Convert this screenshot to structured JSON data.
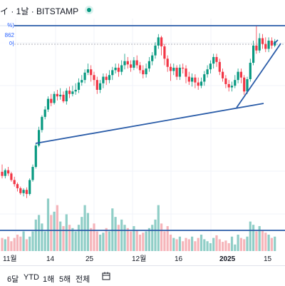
{
  "header": {
    "title": "イ · 1날 · BITSTAMP",
    "series_labels": [
      "%)",
      "862",
      "어"
    ]
  },
  "range_buttons": [
    "6달",
    "YTD",
    "1해",
    "5해",
    "전체"
  ],
  "colors": {
    "up": "#089981",
    "down": "#f23645",
    "up_vol": "#7cc6bd",
    "down_vol": "#f4a8ae",
    "line": "#2a5ca8"
  },
  "chart_data": {
    "type": "candlestick",
    "xtick_labels": [
      "11월",
      "14",
      "25",
      "12월",
      "16",
      "2025",
      "15"
    ],
    "candles": [
      [
        0.1,
        0.05,
        0.19,
        0.02
      ],
      [
        0.05,
        0.12,
        0.14,
        0.02
      ],
      [
        0.12,
        0.08,
        0.16,
        0.05
      ],
      [
        0.08,
        0.0,
        0.1,
        -0.02
      ],
      [
        0.0,
        -0.05,
        0.04,
        -0.08
      ],
      [
        -0.05,
        -0.1,
        -0.03,
        -0.14
      ],
      [
        -0.1,
        -0.16,
        -0.08,
        -0.18
      ],
      [
        -0.16,
        -0.12,
        -0.1,
        -0.2
      ],
      [
        -0.12,
        -0.17,
        -0.09,
        -0.22
      ],
      [
        -0.17,
        0.0,
        0.02,
        -0.19
      ],
      [
        0.0,
        0.16,
        0.19,
        -0.02
      ],
      [
        0.16,
        0.42,
        0.45,
        0.14
      ],
      [
        0.42,
        0.61,
        0.65,
        0.4
      ],
      [
        0.61,
        0.77,
        0.79,
        0.58
      ],
      [
        0.77,
        0.86,
        0.9,
        0.74
      ],
      [
        0.86,
        0.99,
        1.02,
        0.83
      ],
      [
        0.99,
        0.94,
        1.05,
        0.9
      ],
      [
        0.94,
        1.05,
        1.08,
        0.92
      ],
      [
        1.05,
        1.02,
        1.1,
        0.97
      ],
      [
        1.02,
        1.04,
        1.12,
        0.98
      ],
      [
        1.04,
        0.96,
        1.08,
        0.94
      ],
      [
        0.96,
        1.09,
        1.12,
        0.92
      ],
      [
        1.09,
        1.05,
        1.14,
        1.0
      ],
      [
        1.05,
        1.08,
        1.15,
        1.02
      ],
      [
        1.08,
        1.1,
        1.18,
        1.04
      ],
      [
        1.1,
        1.19,
        1.24,
        1.06
      ],
      [
        1.19,
        1.22,
        1.28,
        1.15
      ],
      [
        1.22,
        1.31,
        1.35,
        1.18
      ],
      [
        1.31,
        1.35,
        1.42,
        1.28
      ],
      [
        1.35,
        1.28,
        1.4,
        1.2
      ],
      [
        1.28,
        1.22,
        1.32,
        1.15
      ],
      [
        1.22,
        1.1,
        1.26,
        1.05
      ],
      [
        1.1,
        1.18,
        1.22,
        1.06
      ],
      [
        1.18,
        1.26,
        1.3,
        1.12
      ],
      [
        1.26,
        1.22,
        1.3,
        1.16
      ],
      [
        1.22,
        1.28,
        1.34,
        1.18
      ],
      [
        1.28,
        1.34,
        1.38,
        1.22
      ],
      [
        1.34,
        1.37,
        1.42,
        1.3
      ],
      [
        1.37,
        1.32,
        1.42,
        1.26
      ],
      [
        1.32,
        1.4,
        1.46,
        1.28
      ],
      [
        1.4,
        1.45,
        1.54,
        1.35
      ],
      [
        1.45,
        1.41,
        1.5,
        1.36
      ],
      [
        1.41,
        1.37,
        1.46,
        1.32
      ],
      [
        1.37,
        1.46,
        1.5,
        1.34
      ],
      [
        1.46,
        1.4,
        1.52,
        1.36
      ],
      [
        1.4,
        1.34,
        1.44,
        1.3
      ],
      [
        1.34,
        1.29,
        1.4,
        1.24
      ],
      [
        1.29,
        1.36,
        1.42,
        1.25
      ],
      [
        1.36,
        1.45,
        1.5,
        1.32
      ],
      [
        1.45,
        1.52,
        1.56,
        1.4
      ],
      [
        1.52,
        1.64,
        1.68,
        1.48
      ],
      [
        1.64,
        1.74,
        1.78,
        1.6
      ],
      [
        1.74,
        1.63,
        1.76,
        1.52
      ],
      [
        1.63,
        1.48,
        1.66,
        1.4
      ],
      [
        1.48,
        1.38,
        1.52,
        1.32
      ],
      [
        1.38,
        1.33,
        1.42,
        1.21
      ],
      [
        1.33,
        1.37,
        1.42,
        1.28
      ],
      [
        1.37,
        1.26,
        1.4,
        1.22
      ],
      [
        1.26,
        1.37,
        1.41,
        1.22
      ],
      [
        1.37,
        1.36,
        1.42,
        1.3
      ],
      [
        1.36,
        1.26,
        1.4,
        1.18
      ],
      [
        1.26,
        1.2,
        1.32,
        1.16
      ],
      [
        1.2,
        1.25,
        1.3,
        1.14
      ],
      [
        1.25,
        1.19,
        1.29,
        1.12
      ],
      [
        1.19,
        1.15,
        1.25,
        1.1
      ],
      [
        1.15,
        1.2,
        1.25,
        1.12
      ],
      [
        1.2,
        1.29,
        1.33,
        1.15
      ],
      [
        1.29,
        1.35,
        1.4,
        1.25
      ],
      [
        1.35,
        1.42,
        1.46,
        1.3
      ],
      [
        1.42,
        1.5,
        1.54,
        1.36
      ],
      [
        1.5,
        1.44,
        1.54,
        1.38
      ],
      [
        1.44,
        1.32,
        1.48,
        1.28
      ],
      [
        1.32,
        1.24,
        1.36,
        1.2
      ],
      [
        1.24,
        1.17,
        1.28,
        1.12
      ],
      [
        1.17,
        1.13,
        1.22,
        1.08
      ],
      [
        1.13,
        1.15,
        1.2,
        1.08
      ],
      [
        1.15,
        1.22,
        1.28,
        1.12
      ],
      [
        1.22,
        1.32,
        1.36,
        1.18
      ],
      [
        1.32,
        1.25,
        1.36,
        1.18
      ],
      [
        1.25,
        1.08,
        1.28,
        1.04
      ],
      [
        1.08,
        1.23,
        1.26,
        1.05
      ],
      [
        1.23,
        1.43,
        1.48,
        1.2
      ],
      [
        1.43,
        1.64,
        1.7,
        1.4
      ],
      [
        1.64,
        1.58,
        1.88,
        1.54
      ],
      [
        1.58,
        1.73,
        1.79,
        1.55
      ],
      [
        1.73,
        1.66,
        1.78,
        1.6
      ],
      [
        1.66,
        1.6,
        1.74,
        1.56
      ],
      [
        1.6,
        1.7,
        1.74,
        1.56
      ],
      [
        1.7,
        1.64,
        1.74,
        1.6
      ],
      [
        1.64,
        1.69,
        1.72,
        1.62
      ]
    ],
    "volume": [
      0.2,
      0.18,
      0.22,
      0.15,
      0.2,
      0.25,
      0.22,
      0.3,
      0.18,
      0.22,
      0.3,
      0.48,
      0.55,
      0.42,
      0.3,
      0.8,
      0.55,
      0.6,
      0.7,
      0.45,
      0.38,
      0.56,
      0.4,
      0.35,
      0.3,
      0.4,
      0.52,
      0.7,
      0.58,
      0.35,
      0.42,
      0.3,
      0.25,
      0.28,
      0.35,
      0.3,
      0.65,
      0.52,
      0.4,
      0.48,
      0.4,
      0.35,
      0.3,
      0.38,
      0.32,
      0.25,
      0.28,
      0.3,
      0.35,
      0.4,
      0.48,
      0.7,
      0.42,
      0.3,
      0.38,
      0.25,
      0.2,
      0.18,
      0.22,
      0.15,
      0.2,
      0.18,
      0.22,
      0.15,
      0.2,
      0.25,
      0.18,
      0.15,
      0.12,
      0.2,
      0.24,
      0.18,
      0.14,
      0.16,
      0.12,
      0.22,
      0.1,
      0.25,
      0.2,
      0.18,
      0.22,
      0.45,
      0.4,
      0.3,
      0.38,
      0.32,
      0.28,
      0.25,
      0.2,
      0.22
    ]
  }
}
